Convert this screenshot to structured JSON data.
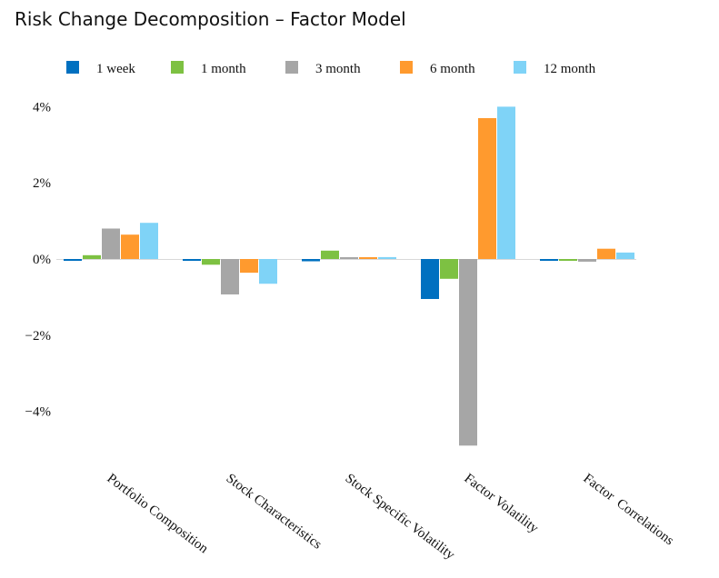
{
  "chart_data": {
    "type": "bar",
    "title": "Risk Change Decomposition – Factor Model",
    "xlabel": "",
    "ylabel": "",
    "ylim": [
      -5,
      4
    ],
    "yticks": [
      {
        "value": 4,
        "label": "4%"
      },
      {
        "value": 2,
        "label": "2%"
      },
      {
        "value": 0,
        "label": "0%"
      },
      {
        "value": -2,
        "label": "−2%"
      },
      {
        "value": -4,
        "label": "−4%"
      }
    ],
    "grid": false,
    "legend_position": "top",
    "categories": [
      "Portfolio Composition",
      "Stock Characteristics",
      "Stock Specific Volatility",
      "Factor Volatility",
      "Factor  Correlations"
    ],
    "series": [
      {
        "name": "1 week",
        "color": "#0070c0",
        "values": [
          -0.04,
          -0.02,
          -0.06,
          -1.05,
          -0.04
        ]
      },
      {
        "name": "1 month",
        "color": "#7dc142",
        "values": [
          0.1,
          -0.15,
          0.22,
          -0.52,
          -0.03
        ]
      },
      {
        "name": "3 month",
        "color": "#a6a6a6",
        "values": [
          0.8,
          -0.93,
          0.02,
          -4.9,
          -0.07
        ]
      },
      {
        "name": "6 month",
        "color": "#ff9a2e",
        "values": [
          0.64,
          -0.36,
          0.02,
          3.7,
          0.27
        ]
      },
      {
        "name": "12 month",
        "color": "#7fd3f7",
        "values": [
          0.95,
          -0.65,
          0.05,
          4.0,
          0.17
        ]
      }
    ]
  }
}
